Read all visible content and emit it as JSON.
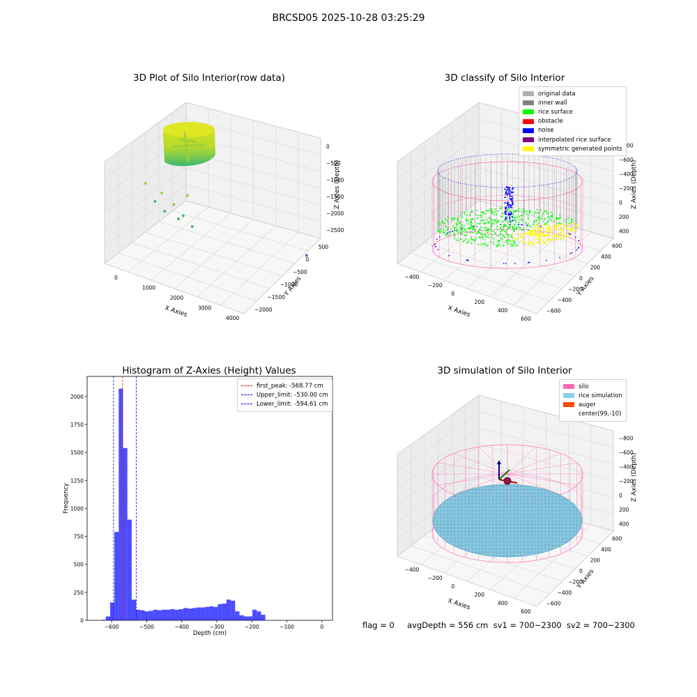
{
  "figure": {
    "suptitle": "BRCSD05 2025-10-28 03:25:29",
    "status_text": "flag = 0     avgDepth = 556 cm  sv1 = 700~2300  sv2 = 700~2300"
  },
  "chart_data": [
    {
      "type": "scatter",
      "title": "3D Plot of Silo Interior(row data)",
      "xlabel": "X Axies",
      "ylabel": "Y Axies",
      "zlabel": "Z Axies (Depth)",
      "x_ticks": [
        "0",
        "1000",
        "2000",
        "3000",
        "4000"
      ],
      "y_ticks": [
        "−2000",
        "−1500",
        "−1000",
        "−500",
        "0",
        "500"
      ],
      "z_ticks": [
        "0",
        "−500",
        "−1000",
        "−1500",
        "−2000",
        "−2500"
      ],
      "outliers": [
        {
          "x": 300,
          "y": 0,
          "z": -1100
        },
        {
          "x": 500,
          "y": -200,
          "z": -1500
        },
        {
          "x": 650,
          "y": -300,
          "z": -1200
        },
        {
          "x": 700,
          "y": -500,
          "z": -1600
        },
        {
          "x": 900,
          "y": -600,
          "z": -1350
        },
        {
          "x": 1000,
          "y": -700,
          "z": -1700
        },
        {
          "x": 1100,
          "y": -800,
          "z": -1550
        },
        {
          "x": 1300,
          "y": -900,
          "z": -1800
        },
        {
          "x": 1200,
          "y": -750,
          "z": -1000
        },
        {
          "x": 3900,
          "y": -1200,
          "z": -2450
        }
      ],
      "colors": {
        "surface_high": "#d8e21c",
        "surface_low": "#46b86a",
        "outlier": "#7a5ea8"
      }
    },
    {
      "type": "scatter",
      "title": "3D classify of Silo Interior",
      "xlabel": "X Axies",
      "ylabel": "Y Axies",
      "zlabel": "Z Axies (Depth)",
      "x_ticks": [
        "−400",
        "−200",
        "0",
        "200",
        "400",
        "600"
      ],
      "y_ticks": [
        "−600",
        "−400",
        "−200",
        "0",
        "200",
        "400",
        "600"
      ],
      "z_ticks": [
        "−800",
        "−600",
        "−400",
        "−200",
        "0",
        "200",
        "400"
      ],
      "legend": [
        {
          "label": "original data",
          "color": "#b0b0b0"
        },
        {
          "label": "inner wall",
          "color": "#808080"
        },
        {
          "label": "rice surface",
          "color": "#00ff00"
        },
        {
          "label": "obstacle",
          "color": "#ff0000"
        },
        {
          "label": "noise",
          "color": "#0000ff"
        },
        {
          "label": "interpolated rice surface",
          "color": "#800080"
        },
        {
          "label": "symmetric generated points",
          "color": "#ffff00"
        }
      ],
      "silo_color": "#ff69b4"
    },
    {
      "type": "bar",
      "title": "Histogram of Z-Axies (Height) Values",
      "xlabel": "Depth (cm)",
      "ylabel": "Frequency",
      "xlim": [
        -670,
        30
      ],
      "ylim": [
        0,
        2180
      ],
      "x_ticks": [
        -600,
        -500,
        -400,
        -300,
        -200,
        -100,
        0
      ],
      "y_ticks": [
        0,
        250,
        500,
        750,
        1000,
        1250,
        1500,
        1750,
        2000
      ],
      "bin_width": 12.3,
      "bin_start": -629,
      "values": [
        5,
        35,
        160,
        790,
        2070,
        1540,
        900,
        185,
        95,
        90,
        80,
        85,
        95,
        90,
        95,
        95,
        100,
        95,
        100,
        110,
        105,
        110,
        115,
        115,
        120,
        125,
        120,
        145,
        150,
        185,
        175,
        80,
        45,
        35,
        35,
        95,
        80,
        50
      ],
      "bar_color": "#0000ff",
      "bar_alpha": 0.7,
      "vlines": [
        {
          "label": "first_peak: -568.77 cm",
          "x": -568.77,
          "color": "#ff0000"
        },
        {
          "label": "Upper_limit: -530.00 cm",
          "x": -530.0,
          "color": "#0000cc"
        },
        {
          "label": "Lower_limit: -594.61 cm",
          "x": -594.61,
          "color": "#0000cc"
        }
      ],
      "legend_position": "top-right"
    },
    {
      "type": "scatter",
      "title": "3D simulation of Silo Interior",
      "xlabel": "X Axies",
      "ylabel": "Y Axies",
      "zlabel": "Z Axies (Depth)",
      "x_ticks": [
        "−400",
        "−200",
        "0",
        "200",
        "400",
        "600"
      ],
      "y_ticks": [
        "−600",
        "−400",
        "−200",
        "0",
        "200",
        "400",
        "600"
      ],
      "z_ticks": [
        "−800",
        "−600",
        "−400",
        "−200",
        "0",
        "200",
        "400"
      ],
      "legend": [
        {
          "label": "silo",
          "color": "#ff69b4"
        },
        {
          "label": "rice simulation",
          "color": "#87ceeb"
        },
        {
          "label": "auger",
          "color": "#ff4500"
        },
        {
          "label": "center(99,-10)",
          "color": "#ffffff"
        }
      ]
    }
  ]
}
